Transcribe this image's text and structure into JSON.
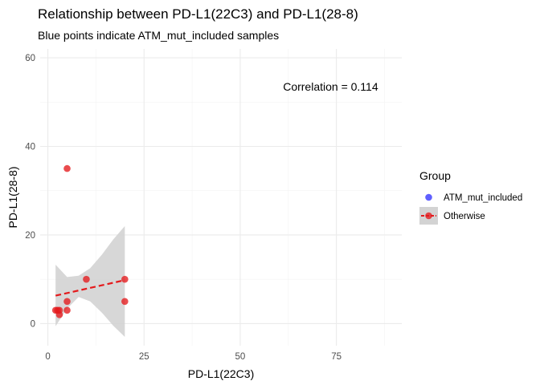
{
  "chart_data": {
    "type": "scatter",
    "title": "Relationship between PD-L1(22C3) and PD-L1(28-8)",
    "subtitle": "Blue points indicate ATM_mut_included samples",
    "xlabel": "PD-L1(22C3)",
    "ylabel": "PD-L1(28-8)",
    "xlim": [
      -2,
      92
    ],
    "ylim": [
      -5,
      62
    ],
    "x_ticks": [
      0,
      25,
      50,
      75
    ],
    "y_ticks": [
      0,
      20,
      40,
      60
    ],
    "grid": true,
    "annotation": "Correlation = 0.114",
    "legend": {
      "title": "Group",
      "position": "right",
      "entries": [
        {
          "label": "ATM_mut_included",
          "color": "#3333ff"
        },
        {
          "label": "Otherwise",
          "color": "#e41a1c"
        }
      ]
    },
    "series": [
      {
        "name": "Otherwise",
        "color": "#e41a1c",
        "points": [
          {
            "x": 2,
            "y": 3
          },
          {
            "x": 2.5,
            "y": 3
          },
          {
            "x": 3,
            "y": 2
          },
          {
            "x": 3,
            "y": 3
          },
          {
            "x": 5,
            "y": 3
          },
          {
            "x": 5,
            "y": 5
          },
          {
            "x": 5,
            "y": 35
          },
          {
            "x": 10,
            "y": 10
          },
          {
            "x": 20,
            "y": 10
          },
          {
            "x": 20,
            "y": 5
          }
        ]
      },
      {
        "name": "ATM_mut_included",
        "color": "#3333ff",
        "points": []
      }
    ],
    "trend_line": {
      "color": "#e41a1c",
      "style": "dashed",
      "x": [
        2,
        20
      ],
      "y": [
        6.3,
        9.8
      ],
      "band": {
        "x": [
          2,
          5,
          8,
          11,
          14,
          17,
          20
        ],
        "lower": [
          -0.6,
          3.4,
          6.0,
          5.0,
          2.5,
          -0.5,
          -3.0
        ],
        "upper": [
          13.3,
          10.5,
          10.8,
          12.5,
          15.5,
          19.0,
          22.0
        ]
      },
      "band_color": "#d3d3d3"
    }
  }
}
